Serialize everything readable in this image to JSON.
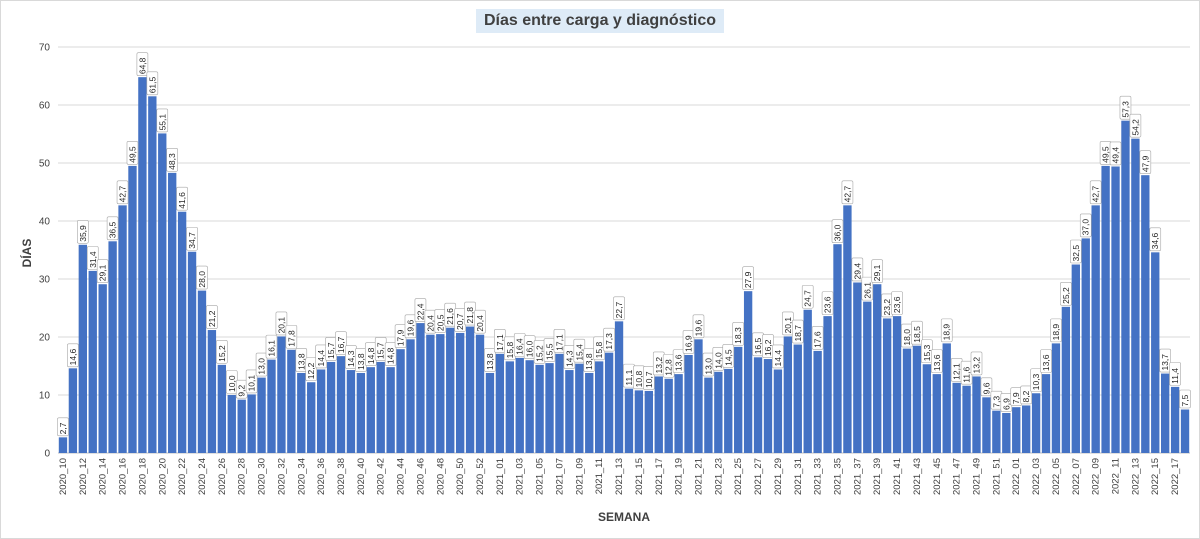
{
  "chart_data": {
    "type": "bar",
    "title": "Días entre carga y diagnóstico",
    "xlabel": "SEMANA",
    "ylabel": "DÍAS",
    "ylim": [
      0,
      70
    ],
    "yticks": [
      0,
      10,
      20,
      30,
      40,
      50,
      60,
      70
    ],
    "grid": "horizontal",
    "color": "#4472C4",
    "categories": [
      "2020_10",
      "2020_11",
      "2020_12",
      "2020_13",
      "2020_14",
      "2020_15",
      "2020_16",
      "2020_17",
      "2020_18",
      "2020_19",
      "2020_20",
      "2020_21",
      "2020_22",
      "2020_23",
      "2020_24",
      "2020_25",
      "2020_26",
      "2020_27",
      "2020_28",
      "2020_29",
      "2020_30",
      "2020_31",
      "2020_32",
      "2020_33",
      "2020_34",
      "2020_35",
      "2020_36",
      "2020_37",
      "2020_38",
      "2020_39",
      "2020_40",
      "2020_41",
      "2020_42",
      "2020_43",
      "2020_44",
      "2020_45",
      "2020_46",
      "2020_47",
      "2020_48",
      "2020_49",
      "2020_50",
      "2020_51",
      "2020_52",
      "2020_53",
      "2021_01",
      "2021_02",
      "2021_03",
      "2021_04",
      "2021_05",
      "2021_06",
      "2021_07",
      "2021_08",
      "2021_09",
      "2021_10",
      "2021_11",
      "2021_12",
      "2021_13",
      "2021_14",
      "2021_15",
      "2021_16",
      "2021_17",
      "2021_18",
      "2021_19",
      "2021_20",
      "2021_21",
      "2021_22",
      "2021_23",
      "2021_24",
      "2021_25",
      "2021_26",
      "2021_27",
      "2021_28",
      "2021_29",
      "2021_30",
      "2021_31",
      "2021_32",
      "2021_33",
      "2021_34",
      "2021_35",
      "2021_36",
      "2021_37",
      "2021_38",
      "2021_39",
      "2021_40",
      "2021_41",
      "2021_42",
      "2021_43",
      "2021_44",
      "2021_45",
      "2021_46",
      "2021_47",
      "2021_48",
      "2021_49",
      "2021_50",
      "2021_51",
      "2021_52",
      "2022_01",
      "2022_02",
      "2022_03",
      "2022_04",
      "2022_05",
      "2022_06",
      "2022_07",
      "2022_08",
      "2022_09",
      "2022_10",
      "2022_11",
      "2022_12",
      "2022_13",
      "2022_14",
      "2022_15",
      "2022_16",
      "2022_17",
      "2022_18"
    ],
    "visible_tick_labels": [
      "2020_10",
      "2020_12",
      "2020_14",
      "2020_16",
      "2020_18",
      "2020_20",
      "2020_22",
      "2020_24",
      "2020_26",
      "2020_28",
      "2020_30",
      "2020_32",
      "2020_34",
      "2020_36",
      "2020_38",
      "2020_40",
      "2020_42",
      "2020_44",
      "2020_46",
      "2020_48",
      "2020_50",
      "2020_52",
      "2021_01",
      "2021_03",
      "2021_05",
      "2021_07",
      "2021_09",
      "2021_11",
      "2021_13",
      "2021_15",
      "2021_17",
      "2021_19",
      "2021_21",
      "2021_23",
      "2021_25",
      "2021_27",
      "2021_29",
      "2021_31",
      "2021_33",
      "2021_35",
      "2021_37",
      "2021_39",
      "2021_41",
      "2021_43",
      "2021_45",
      "2021_47",
      "2021_49",
      "2021_51",
      "2022_01",
      "2022_03",
      "2022_05",
      "2022_07",
      "2022_09",
      "2022_11",
      "2022_13",
      "2022_15",
      "2022_17"
    ],
    "values": [
      2.7,
      14.6,
      35.9,
      31.4,
      29.1,
      36.5,
      42.7,
      49.5,
      64.8,
      61.5,
      55.1,
      48.3,
      41.6,
      34.7,
      28.0,
      21.2,
      15.2,
      10.0,
      9.2,
      10.1,
      13.0,
      16.1,
      20.1,
      17.8,
      13.8,
      12.2,
      14.4,
      15.7,
      16.7,
      14.3,
      13.8,
      14.8,
      15.7,
      14.8,
      17.9,
      19.6,
      22.4,
      20.4,
      20.5,
      21.6,
      20.7,
      21.8,
      20.4,
      13.8,
      17.1,
      15.8,
      16.4,
      16.0,
      15.2,
      15.5,
      17.1,
      14.3,
      15.4,
      13.8,
      15.8,
      17.3,
      22.7,
      11.1,
      10.8,
      10.7,
      13.2,
      12.8,
      13.6,
      16.9,
      19.6,
      13.0,
      14.0,
      14.5,
      18.3,
      27.9,
      16.5,
      16.2,
      14.4,
      20.1,
      18.7,
      24.7,
      17.6,
      23.6,
      36.0,
      42.7,
      29.4,
      26.1,
      29.1,
      23.2,
      23.6,
      18.0,
      18.5,
      15.3,
      13.6,
      18.9,
      12.1,
      11.6,
      13.2,
      9.6,
      7.3,
      6.9,
      7.9,
      8.2,
      10.3,
      13.6,
      18.9,
      25.2,
      32.5,
      37.0,
      42.7,
      49.5,
      49.4,
      57.3,
      54.2,
      47.9,
      34.6,
      13.7,
      11.4,
      7.5
    ],
    "data_labels": [
      "2,7",
      "14,6",
      "35,9",
      "31,4",
      "29,1",
      "36,5",
      "42,7",
      "49,5",
      "64,8",
      "61,5",
      "55,1",
      "48,3",
      "41,6",
      "34,7",
      "28,0",
      "21,2",
      "15,2",
      "10,0",
      "9,2",
      "10,1",
      "13,0",
      "16,1",
      "20,1",
      "17,8",
      "13,8",
      "12,2",
      "14,4",
      "15,7",
      "16,7",
      "14,3",
      "13,8",
      "14,8",
      "15,7",
      "14,8",
      "17,9",
      "19,6",
      "22,4",
      "20,4",
      "20,5",
      "21,6",
      "20,7",
      "21,8",
      "20,4",
      "13,8",
      "17,1",
      "15,8",
      "16,4",
      "16,0",
      "15,2",
      "15,5",
      "17,1",
      "14,3",
      "15,4",
      "13,8",
      "15,8",
      "17,3",
      "22,7",
      "11,1",
      "10,8",
      "10,7",
      "13,2",
      "12,8",
      "13,6",
      "16,9",
      "19,6",
      "13,0",
      "14,0",
      "14,5",
      "18,3",
      "27,9",
      "16,5",
      "16,2",
      "14,4",
      "20,1",
      "18,7",
      "24,7",
      "17,6",
      "23,6",
      "36,0",
      "42,7",
      "29,4",
      "26,1",
      "29,1",
      "23,2",
      "23,6",
      "18,0",
      "18,5",
      "15,3",
      "13,6",
      "18,9",
      "12,1",
      "11,6",
      "13,2",
      "9,6",
      "7,3",
      "6,9",
      "7,9",
      "8,2",
      "10,3",
      "13,6",
      "18,9",
      "25,2",
      "32,5",
      "37,0",
      "42,7",
      "49,5",
      "49,4",
      "57,3",
      "54,2",
      "47,9",
      "34,6",
      "13,7",
      "11,4",
      "7,5"
    ]
  }
}
